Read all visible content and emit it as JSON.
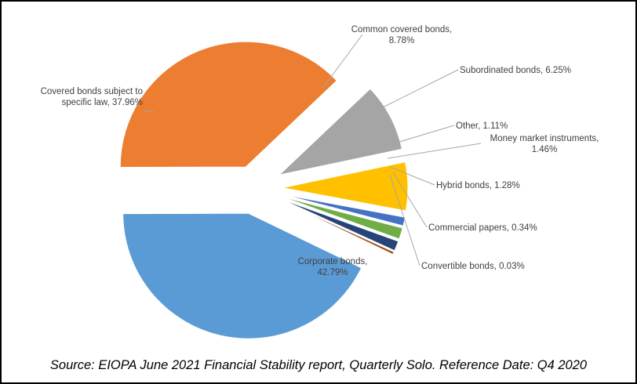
{
  "chart_data": {
    "type": "pie",
    "categories": [
      "Corporate bonds",
      "Covered bonds subject to specific law",
      "Common covered bonds",
      "Subordinated bonds",
      "Other",
      "Money market instruments",
      "Hybrid bonds",
      "Commercial papers",
      "Convertible bonds"
    ],
    "values": [
      42.79,
      37.96,
      8.78,
      6.25,
      1.11,
      1.46,
      1.28,
      0.34,
      0.03
    ],
    "colors": [
      "#5b9bd5",
      "#ed7d31",
      "#a5a5a5",
      "#ffc000",
      "#4472c4",
      "#70ad47",
      "#264478",
      "#9e480e",
      "#636363"
    ],
    "labels": [
      [
        "Corporate bonds,",
        "42.79%"
      ],
      [
        "Covered bonds subject to",
        "specific law, 37.96%"
      ],
      [
        "Common covered bonds,",
        "8.78%"
      ],
      [
        "Subordinated bonds, 6.25%"
      ],
      [
        "Other, 1.11%"
      ],
      [
        "Money market instruments,",
        "1.46%"
      ],
      [
        "Hybrid bonds, 1.28%"
      ],
      [
        "Commercial papers, 0.34%"
      ],
      [
        "Convertible bonds, 0.03%"
      ]
    ],
    "legend": "none"
  },
  "source_note": "Source: EIOPA June 2021 Financial Stability report, Quarterly Solo. Reference Date: Q4 2020"
}
